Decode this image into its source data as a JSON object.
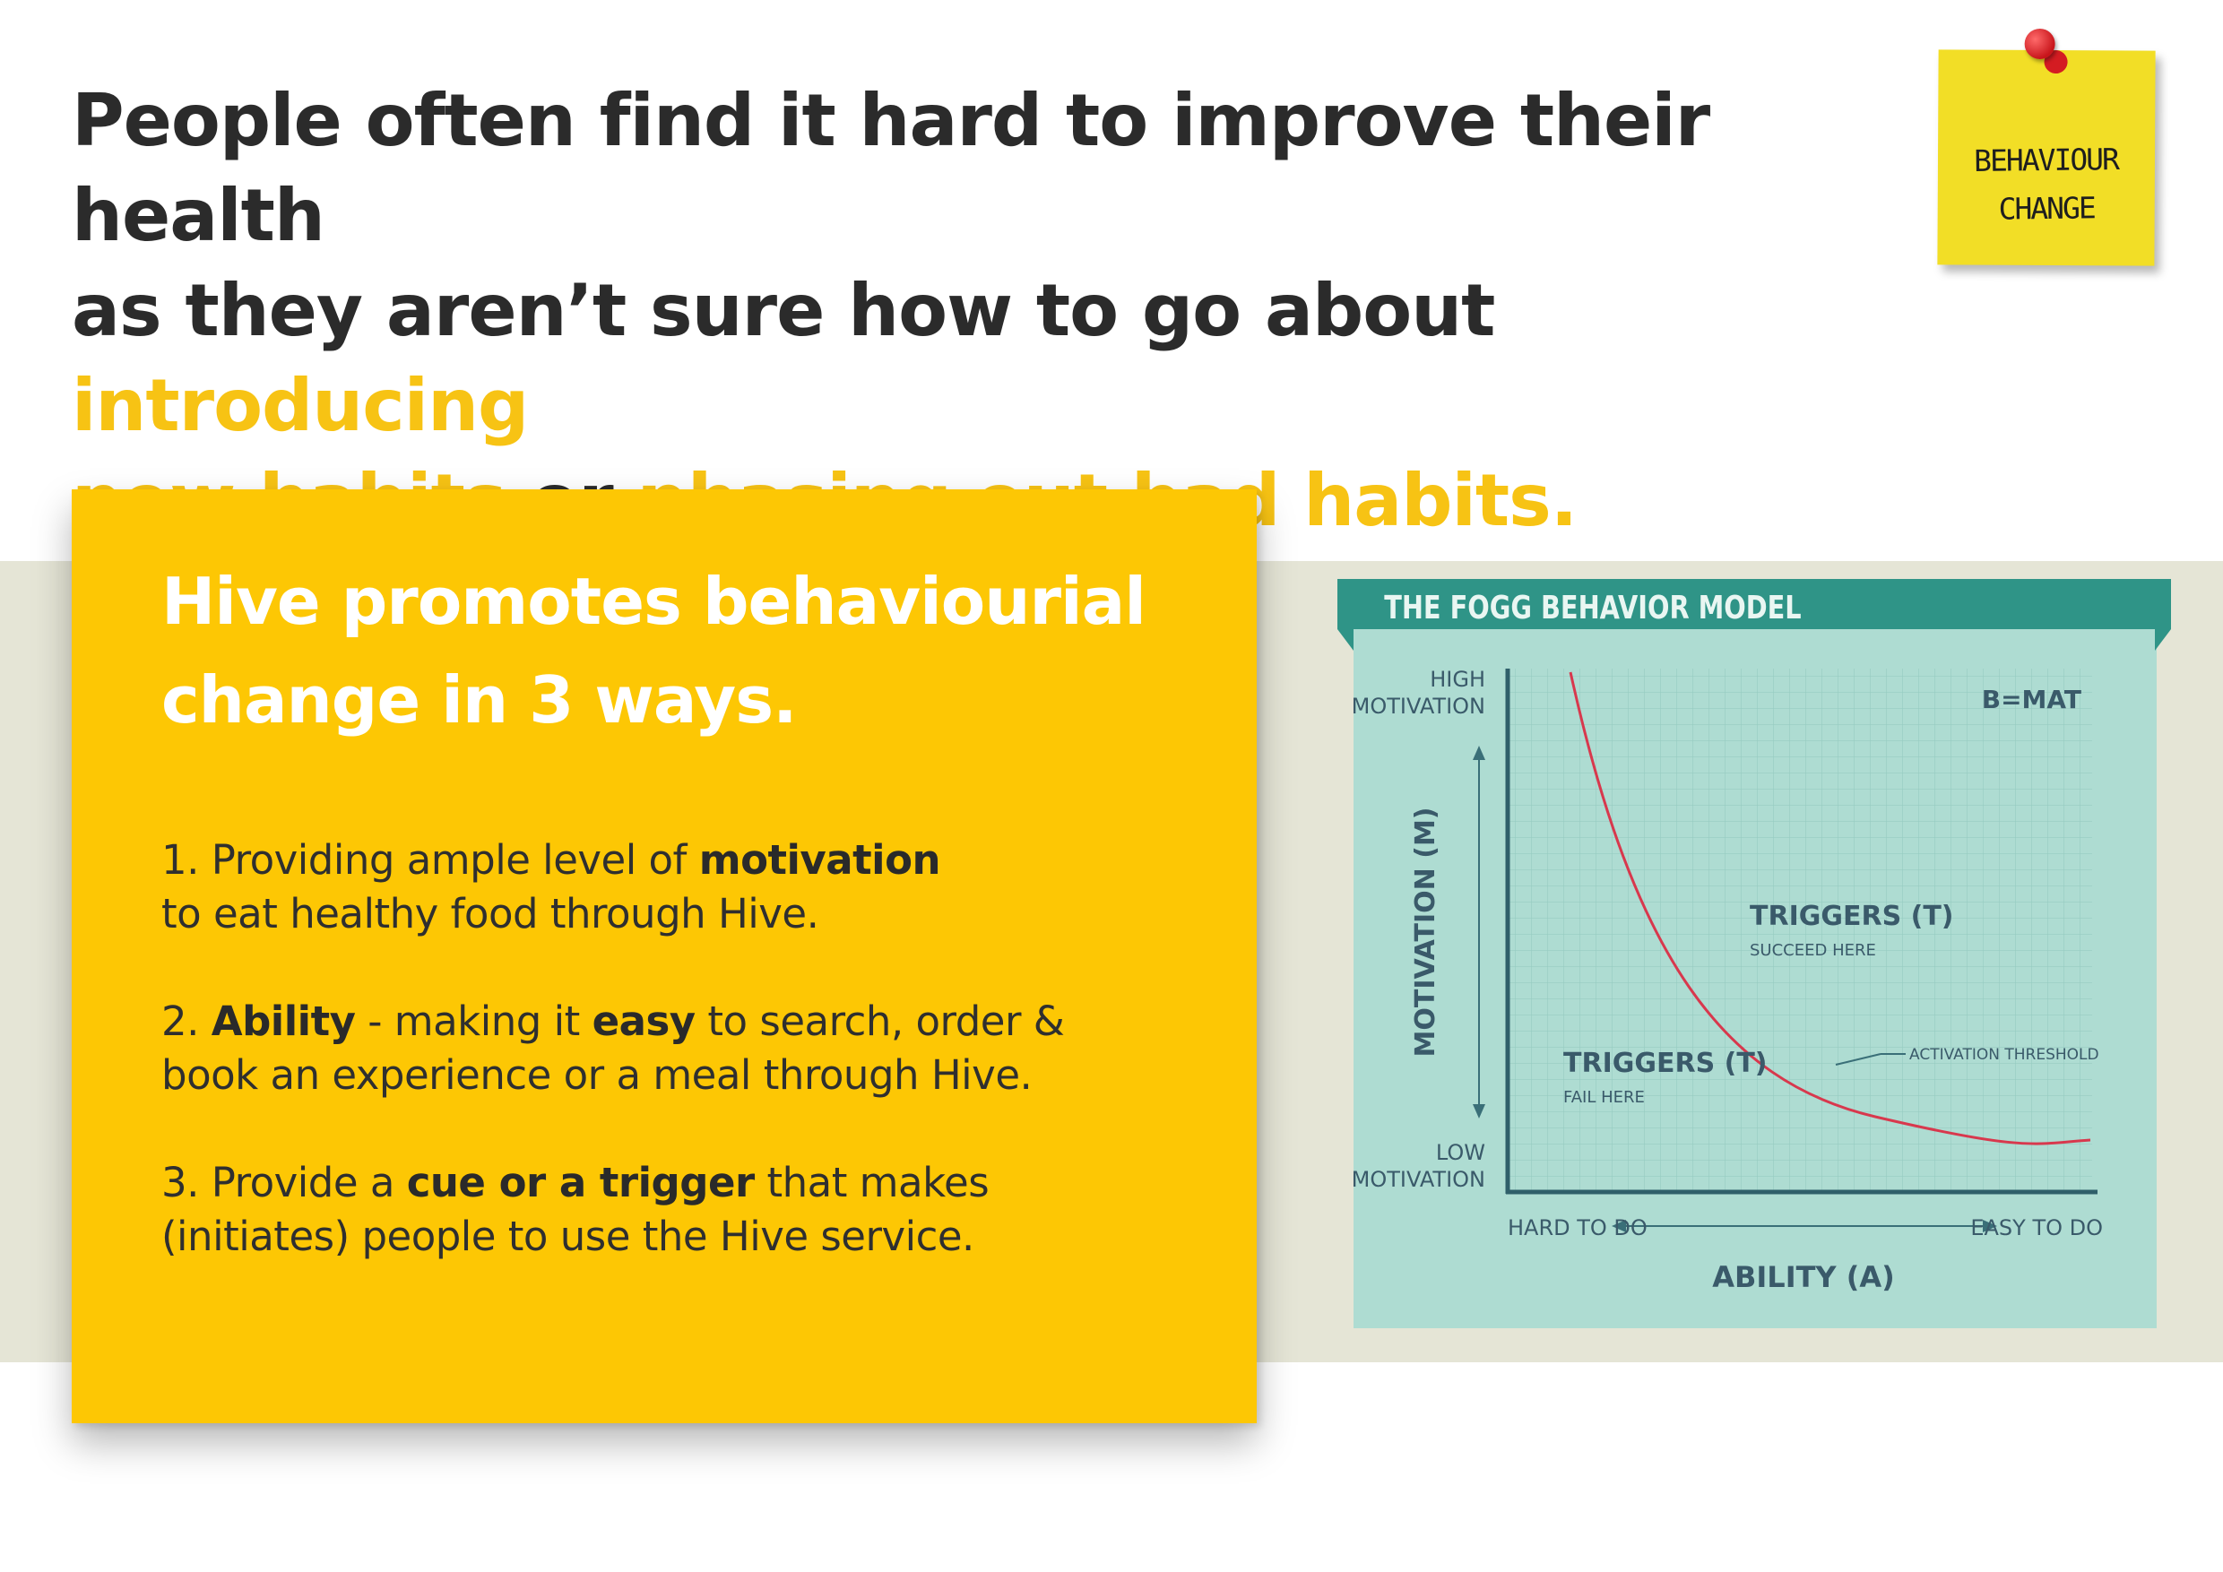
{
  "headline": {
    "line1": "People often find it hard to improve their health",
    "line2_pre": "as they aren’t sure how to go about ",
    "line2_hl": "introducing",
    "line3_hl1": "new habits",
    "line3_mid": " or ",
    "line3_hl2": "phasing out bad habits."
  },
  "sticky_note": {
    "line1": "BEHAVIOUR",
    "line2": "CHANGE"
  },
  "card": {
    "title_line1": "Hive promotes behaviourial",
    "title_line2": "change in 3 ways.",
    "point1": {
      "a": "1. Providing ample level of ",
      "b": "motivation",
      "c": "to eat healthy food through Hive."
    },
    "point2": {
      "a": "2. ",
      "b": "Ability",
      "c": " - making it ",
      "d": "easy",
      "e": " to search, order &",
      "f": "book an experience or a meal through Hive."
    },
    "point3": {
      "a": "3. Provide a ",
      "b": "cue or a trigger",
      "c": " that makes",
      "d": "(initiates) people to use the Hive service."
    }
  },
  "fogg_model": {
    "title": "THE FOGG BEHAVIOR MODEL",
    "formula": "B=MAT",
    "high_line1": "HIGH",
    "high_line2": "MOTIVATION",
    "low_line1": "LOW",
    "low_line2": "MOTIVATION",
    "y_axis": "MOTIVATION (M)",
    "x_axis": "ABILITY (A)",
    "hard": "HARD TO DO",
    "easy": "EASY TO DO",
    "succeed_title": "TRIGGERS (T)",
    "succeed_sub": "SUCCEED HERE",
    "fail_title": "TRIGGERS (T)",
    "fail_sub": "FAIL HERE",
    "threshold": "ACTIVATION THRESHOLD",
    "colors": {
      "panel": "#aedcd2",
      "banner": "#2f9487",
      "curve": "#d8384d",
      "text": "#3a5a6a"
    }
  }
}
